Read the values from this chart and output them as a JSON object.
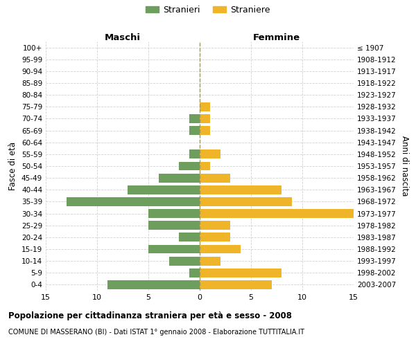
{
  "age_groups": [
    "100+",
    "95-99",
    "90-94",
    "85-89",
    "80-84",
    "75-79",
    "70-74",
    "65-69",
    "60-64",
    "55-59",
    "50-54",
    "45-49",
    "40-44",
    "35-39",
    "30-34",
    "25-29",
    "20-24",
    "15-19",
    "10-14",
    "5-9",
    "0-4"
  ],
  "birth_years": [
    "≤ 1907",
    "1908-1912",
    "1913-1917",
    "1918-1922",
    "1923-1927",
    "1928-1932",
    "1933-1937",
    "1938-1942",
    "1943-1947",
    "1948-1952",
    "1953-1957",
    "1958-1962",
    "1963-1967",
    "1968-1972",
    "1973-1977",
    "1978-1982",
    "1983-1987",
    "1988-1992",
    "1993-1997",
    "1998-2002",
    "2003-2007"
  ],
  "males": [
    0,
    0,
    0,
    0,
    0,
    0,
    1,
    1,
    0,
    1,
    2,
    4,
    7,
    13,
    5,
    5,
    2,
    5,
    3,
    1,
    9
  ],
  "females": [
    0,
    0,
    0,
    0,
    0,
    1,
    1,
    1,
    0,
    2,
    1,
    3,
    8,
    9,
    15,
    3,
    3,
    4,
    2,
    8,
    7
  ],
  "male_color": "#6d9e5e",
  "female_color": "#f0b429",
  "background_color": "#ffffff",
  "grid_color": "#cccccc",
  "center_line_color": "#999966",
  "xlim": 15,
  "title": "Popolazione per cittadinanza straniera per età e sesso - 2008",
  "subtitle": "COMUNE DI MASSERANO (BI) - Dati ISTAT 1° gennaio 2008 - Elaborazione TUTTITALIA.IT",
  "legend_stranieri": "Stranieri",
  "legend_straniere": "Straniere",
  "left_header": "Maschi",
  "right_header": "Femmine",
  "ylabel": "Fasce di età",
  "right_ylabel": "Anni di nascita"
}
